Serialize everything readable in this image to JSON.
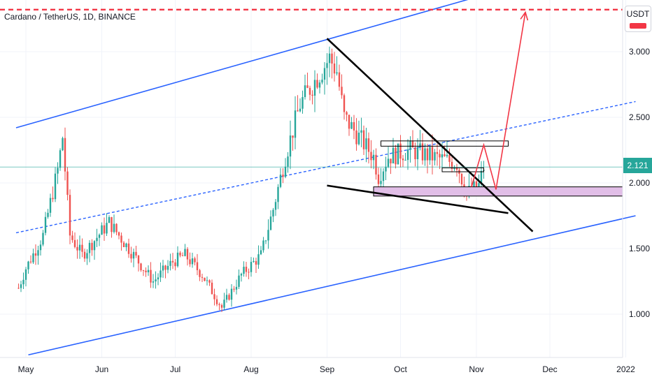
{
  "header": {
    "title": "Cardano / TetherUS, 1D, BINANCE"
  },
  "axis": {
    "currency_badge": "USDT",
    "current_price_label": "2.121"
  },
  "colors": {
    "up": "#26a69a",
    "down": "#ef5350",
    "channel": "#2962ff",
    "target": "#f23645",
    "projection": "#f23645",
    "zone": "#e1bee7"
  },
  "chart_data": {
    "type": "candlestick",
    "symbol": "Cardano / TetherUS",
    "interval": "1D",
    "exchange": "BINANCE",
    "y_ticks": [
      "1.000",
      "1.500",
      "2.000",
      "2.500",
      "3.000"
    ],
    "x_ticks": [
      "May",
      "Jun",
      "Jul",
      "Aug",
      "Sep",
      "Oct",
      "Nov",
      "Dec",
      "2022"
    ],
    "ylim": [
      0.7,
      3.45
    ],
    "last_price": 2.121,
    "price_anchors": [
      {
        "date": "2021-04-28",
        "price": 1.2
      },
      {
        "date": "2021-05-01",
        "price": 1.35
      },
      {
        "date": "2021-05-08",
        "price": 1.6
      },
      {
        "date": "2021-05-14",
        "price": 2.1
      },
      {
        "date": "2021-05-16",
        "price": 2.35
      },
      {
        "date": "2021-05-19",
        "price": 1.6
      },
      {
        "date": "2021-05-24",
        "price": 1.45
      },
      {
        "date": "2021-06-04",
        "price": 1.7
      },
      {
        "date": "2021-06-22",
        "price": 1.25
      },
      {
        "date": "2021-06-30",
        "price": 1.4
      },
      {
        "date": "2021-07-05",
        "price": 1.45
      },
      {
        "date": "2021-07-12",
        "price": 1.3
      },
      {
        "date": "2021-07-20",
        "price": 1.05
      },
      {
        "date": "2021-07-28",
        "price": 1.3
      },
      {
        "date": "2021-08-05",
        "price": 1.45
      },
      {
        "date": "2021-08-10",
        "price": 1.8
      },
      {
        "date": "2021-08-15",
        "price": 2.2
      },
      {
        "date": "2021-08-21",
        "price": 2.6
      },
      {
        "date": "2021-08-26",
        "price": 2.75
      },
      {
        "date": "2021-09-02",
        "price": 2.95
      },
      {
        "date": "2021-09-05",
        "price": 2.85
      },
      {
        "date": "2021-09-08",
        "price": 2.5
      },
      {
        "date": "2021-09-12",
        "price": 2.4
      },
      {
        "date": "2021-09-20",
        "price": 2.2
      },
      {
        "date": "2021-09-22",
        "price": 2.05
      },
      {
        "date": "2021-09-26",
        "price": 2.2
      },
      {
        "date": "2021-10-05",
        "price": 2.25
      },
      {
        "date": "2021-10-14",
        "price": 2.2
      },
      {
        "date": "2021-10-24",
        "price": 2.15
      },
      {
        "date": "2021-10-28",
        "price": 1.92
      },
      {
        "date": "2021-11-02",
        "price": 1.98
      },
      {
        "date": "2021-11-04",
        "price": 2.121
      }
    ],
    "annotations": {
      "ascending_channel": {
        "upper": [
          {
            "date": "2021-04-27",
            "price": 2.42
          },
          {
            "date": "2021-12-02",
            "price": 3.58
          }
        ],
        "middle": [
          {
            "date": "2021-04-27",
            "price": 1.62
          },
          {
            "date": "2022-01-05",
            "price": 2.62
          }
        ],
        "lower": [
          {
            "date": "2021-05-02",
            "price": 0.69
          },
          {
            "date": "2022-01-05",
            "price": 1.75
          }
        ]
      },
      "target_line": {
        "price": 3.32
      },
      "wedge_upper": [
        {
          "date": "2021-09-01",
          "price": 3.1
        },
        {
          "date": "2021-11-24",
          "price": 1.63
        }
      ],
      "wedge_lower": [
        {
          "date": "2021-09-01",
          "price": 1.98
        },
        {
          "date": "2021-11-14",
          "price": 1.77
        }
      ],
      "resistance_box_1": {
        "from": "2021-09-23",
        "to": "2021-11-14",
        "low": 2.28,
        "high": 2.32
      },
      "resistance_box_2": {
        "from": "2021-10-18",
        "to": "2021-11-04",
        "low": 2.085,
        "high": 2.115
      },
      "support_zone": {
        "from": "2021-09-20",
        "to": "2022-01-05",
        "low": 1.9,
        "high": 1.97
      },
      "projection_path": [
        {
          "date": "2021-10-30",
          "price": 1.97
        },
        {
          "date": "2021-11-04",
          "price": 2.29
        },
        {
          "date": "2021-11-09",
          "price": 1.95
        },
        {
          "date": "2021-11-21",
          "price": 3.3
        }
      ]
    }
  }
}
